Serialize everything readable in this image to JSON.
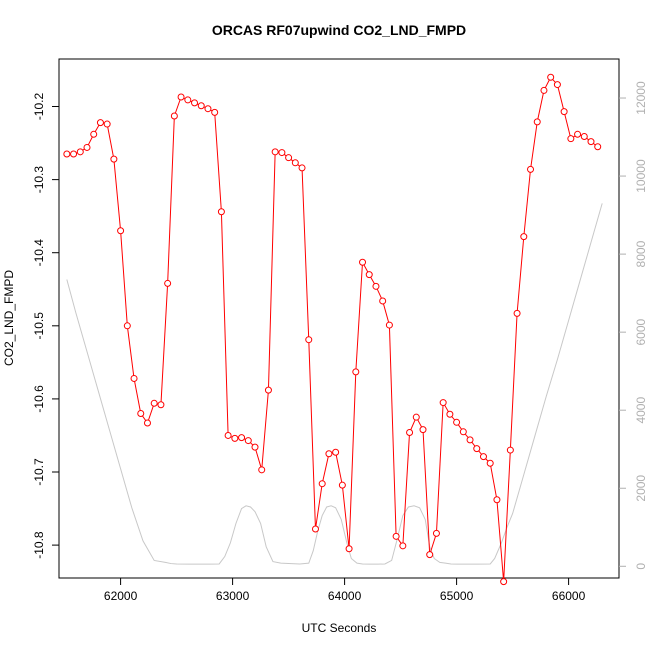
{
  "chart_data": {
    "type": "line",
    "title": "ORCAS RF07upwind CO2_LND_FMPD",
    "xlabel": "UTC Seconds",
    "ylabel": "CO2_LND_FMPD",
    "xlim": [
      61450,
      66450
    ],
    "ylim": [
      -10.845,
      -10.135
    ],
    "y2lim": [
      -300,
      13000
    ],
    "x_ticks": [
      62000,
      63000,
      64000,
      65000,
      66000
    ],
    "y_ticks": [
      -10.2,
      -10.3,
      -10.4,
      -10.5,
      -10.6,
      -10.7,
      -10.8
    ],
    "y2_ticks": [
      0,
      2000,
      4000,
      6000,
      8000,
      10000,
      12000
    ],
    "series": [
      {
        "color": "#ff0000",
        "marker": "open-circle",
        "x": [
          61520,
          61580,
          61640,
          61700,
          61760,
          61820,
          61880,
          61940,
          62000,
          62060,
          62120,
          62180,
          62240,
          62300,
          62360,
          62420,
          62480,
          62540,
          62600,
          62660,
          62720,
          62780,
          62840,
          62900,
          62960,
          63020,
          63080,
          63140,
          63200,
          63260,
          63320,
          63380,
          63440,
          63500,
          63560,
          63620,
          63680,
          63740,
          63800,
          63860,
          63920,
          63980,
          64040,
          64100,
          64160,
          64220,
          64280,
          64340,
          64400,
          64460,
          64520,
          64580,
          64640,
          64700,
          64760,
          64820,
          64880,
          64940,
          65000,
          65060,
          65120,
          65180,
          65240,
          65300,
          65360,
          65420,
          65480,
          65540,
          65600,
          65660,
          65720,
          65780,
          65840,
          65900,
          65960,
          66020,
          66080,
          66140,
          66200,
          66260
        ],
        "y": [
          -10.265,
          -10.265,
          -10.262,
          -10.256,
          -10.238,
          -10.222,
          -10.224,
          -10.272,
          -10.37,
          -10.5,
          -10.572,
          -10.62,
          -10.633,
          -10.606,
          -10.608,
          -10.442,
          -10.213,
          -10.187,
          -10.191,
          -10.195,
          -10.199,
          -10.203,
          -10.208,
          -10.344,
          -10.65,
          -10.654,
          -10.653,
          -10.657,
          -10.666,
          -10.697,
          -10.588,
          -10.262,
          -10.263,
          -10.27,
          -10.277,
          -10.284,
          -10.519,
          -10.778,
          -10.716,
          -10.675,
          -10.673,
          -10.718,
          -10.805,
          -10.563,
          -10.413,
          -10.43,
          -10.446,
          -10.466,
          -10.499,
          -10.788,
          -10.801,
          -10.646,
          -10.625,
          -10.642,
          -10.813,
          -10.784,
          -10.605,
          -10.621,
          -10.632,
          -10.645,
          -10.656,
          -10.668,
          -10.679,
          -10.688,
          -10.738,
          -10.85,
          -10.67,
          -10.483,
          -10.378,
          -10.286,
          -10.221,
          -10.178,
          -10.16,
          -10.17,
          -10.207,
          -10.244,
          -10.238,
          -10.241,
          -10.248,
          -10.255
        ]
      },
      {
        "color": "#c8c8c8",
        "axis": "right",
        "x": [
          61520,
          61600,
          61700,
          61800,
          61900,
          62000,
          62100,
          62200,
          62300,
          62400,
          62450,
          62500,
          62600,
          62700,
          62800,
          62880,
          62930,
          62980,
          63030,
          63080,
          63120,
          63160,
          63200,
          63250,
          63300,
          63360,
          63430,
          63500,
          63600,
          63680,
          63720,
          63760,
          63800,
          63840,
          63880,
          63920,
          63970,
          64020,
          64060,
          64110,
          64160,
          64220,
          64300,
          64360,
          64420,
          64470,
          64520,
          64570,
          64620,
          64670,
          64720,
          64760,
          64800,
          64850,
          64900,
          64950,
          65000,
          65100,
          65200,
          65300,
          65340,
          65400,
          65450,
          65500,
          65600,
          65700,
          65800,
          65900,
          66000,
          66100,
          66200,
          66300
        ],
        "y": [
          7350,
          6500,
          5500,
          4500,
          3500,
          2500,
          1500,
          650,
          150,
          100,
          70,
          60,
          55,
          55,
          55,
          60,
          250,
          600,
          1100,
          1480,
          1550,
          1520,
          1400,
          1100,
          500,
          120,
          80,
          70,
          60,
          80,
          400,
          900,
          1300,
          1520,
          1550,
          1500,
          1200,
          600,
          200,
          80,
          60,
          55,
          55,
          60,
          150,
          700,
          1300,
          1520,
          1550,
          1500,
          1200,
          500,
          200,
          100,
          80,
          60,
          55,
          55,
          55,
          60,
          200,
          600,
          1000,
          1350,
          2350,
          3350,
          4350,
          5300,
          6300,
          7300,
          8300,
          9300
        ]
      }
    ]
  }
}
